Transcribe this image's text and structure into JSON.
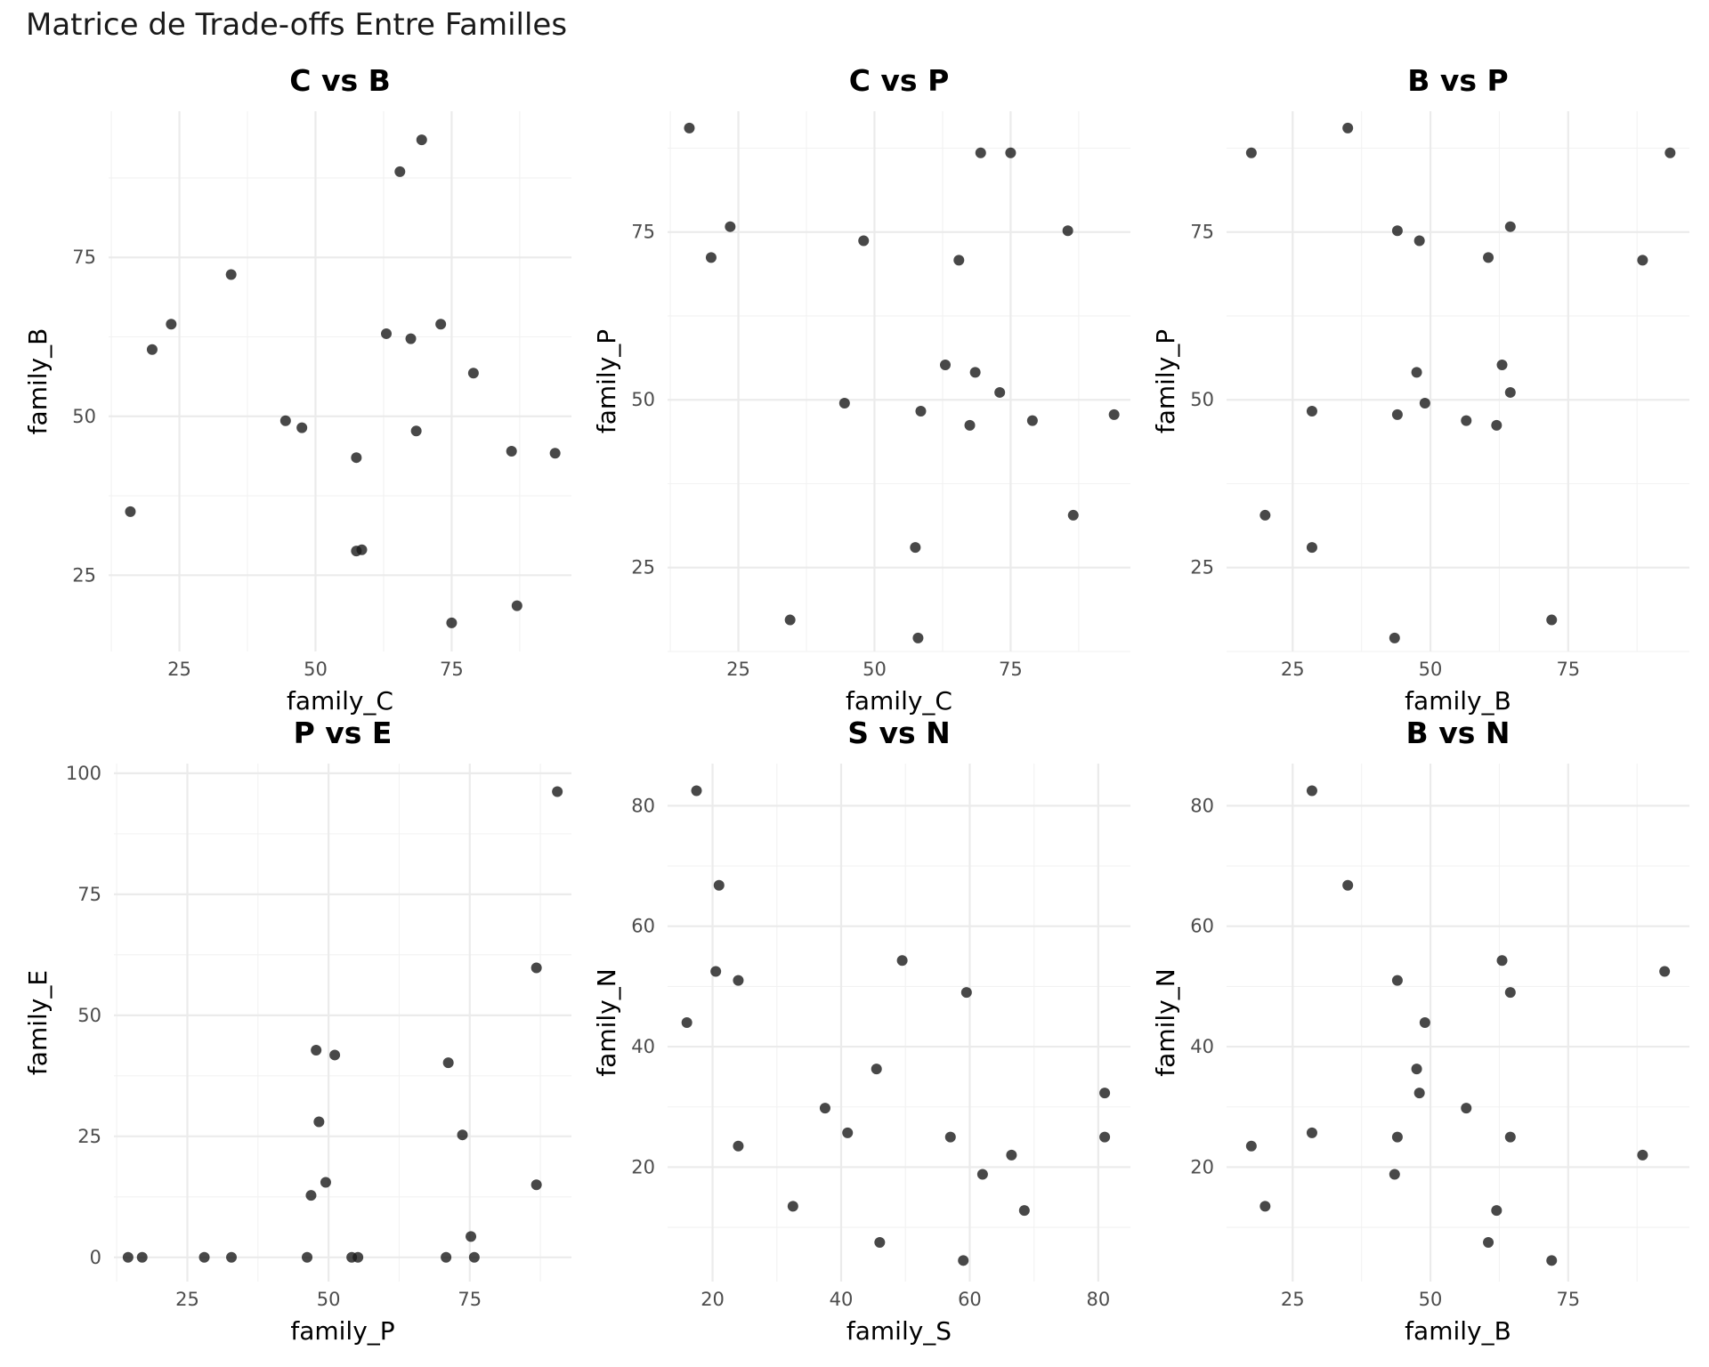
{
  "figure": {
    "title": "Matrice de Trade-offs Entre Familles"
  },
  "chart_data": [
    {
      "type": "scatter",
      "title": "C vs B",
      "xlabel": "family_C",
      "ylabel": "family_B",
      "xlim": [
        12,
        97
      ],
      "ylim": [
        13,
        98
      ],
      "x_ticks": [
        25,
        50,
        75
      ],
      "y_ticks": [
        25,
        50,
        75
      ],
      "grid": true,
      "points": [
        {
          "x": 16,
          "y": 35
        },
        {
          "x": 20,
          "y": 60.5
        },
        {
          "x": 23.5,
          "y": 64.5
        },
        {
          "x": 34.5,
          "y": 72.3
        },
        {
          "x": 44.5,
          "y": 49.3
        },
        {
          "x": 47.5,
          "y": 48.2
        },
        {
          "x": 57.5,
          "y": 43.5
        },
        {
          "x": 57.5,
          "y": 28.8
        },
        {
          "x": 58.5,
          "y": 29
        },
        {
          "x": 63,
          "y": 63
        },
        {
          "x": 65.5,
          "y": 88.5
        },
        {
          "x": 67.5,
          "y": 62.2
        },
        {
          "x": 68.5,
          "y": 47.7
        },
        {
          "x": 69.5,
          "y": 93.5
        },
        {
          "x": 73,
          "y": 64.5
        },
        {
          "x": 75,
          "y": 17.5
        },
        {
          "x": 79,
          "y": 56.8
        },
        {
          "x": 86,
          "y": 44.5
        },
        {
          "x": 87,
          "y": 20.2
        },
        {
          "x": 94,
          "y": 44.2
        }
      ]
    },
    {
      "type": "scatter",
      "title": "C vs P",
      "xlabel": "family_C",
      "ylabel": "family_P",
      "xlim": [
        12,
        97
      ],
      "ylim": [
        12.5,
        93
      ],
      "x_ticks": [
        25,
        50,
        75
      ],
      "y_ticks": [
        25,
        50,
        75
      ],
      "grid": true,
      "points": [
        {
          "x": 16,
          "y": 90.5
        },
        {
          "x": 20,
          "y": 71.2
        },
        {
          "x": 23.5,
          "y": 75.8
        },
        {
          "x": 34.5,
          "y": 17.2
        },
        {
          "x": 44.5,
          "y": 49.5
        },
        {
          "x": 48,
          "y": 73.7
        },
        {
          "x": 57.5,
          "y": 28
        },
        {
          "x": 58,
          "y": 14.5
        },
        {
          "x": 58.5,
          "y": 48.3
        },
        {
          "x": 63,
          "y": 55.2
        },
        {
          "x": 65.5,
          "y": 70.8
        },
        {
          "x": 67.5,
          "y": 46.2
        },
        {
          "x": 68.5,
          "y": 54.1
        },
        {
          "x": 69.5,
          "y": 86.8
        },
        {
          "x": 73,
          "y": 51.1
        },
        {
          "x": 75,
          "y": 86.8
        },
        {
          "x": 79,
          "y": 46.9
        },
        {
          "x": 85.5,
          "y": 75.2
        },
        {
          "x": 86.5,
          "y": 32.8
        },
        {
          "x": 94,
          "y": 47.8
        }
      ]
    },
    {
      "type": "scatter",
      "title": "B vs P",
      "xlabel": "family_B",
      "ylabel": "family_P",
      "xlim": [
        13,
        97
      ],
      "ylim": [
        12.5,
        93
      ],
      "x_ticks": [
        25,
        50,
        75
      ],
      "y_ticks": [
        25,
        50,
        75
      ],
      "grid": true,
      "points": [
        {
          "x": 17.5,
          "y": 86.8
        },
        {
          "x": 20,
          "y": 32.8
        },
        {
          "x": 28.5,
          "y": 48.3
        },
        {
          "x": 28.5,
          "y": 28
        },
        {
          "x": 35,
          "y": 90.5
        },
        {
          "x": 43.5,
          "y": 14.5
        },
        {
          "x": 44,
          "y": 75.2
        },
        {
          "x": 44,
          "y": 47.8
        },
        {
          "x": 47.5,
          "y": 54.1
        },
        {
          "x": 48,
          "y": 73.7
        },
        {
          "x": 49,
          "y": 49.5
        },
        {
          "x": 56.5,
          "y": 46.9
        },
        {
          "x": 60.5,
          "y": 71.2
        },
        {
          "x": 62,
          "y": 46.2
        },
        {
          "x": 63,
          "y": 55.2
        },
        {
          "x": 64.5,
          "y": 51.1
        },
        {
          "x": 64.5,
          "y": 75.8
        },
        {
          "x": 72,
          "y": 17.2
        },
        {
          "x": 88.5,
          "y": 70.8
        },
        {
          "x": 93.5,
          "y": 86.8
        }
      ]
    },
    {
      "type": "scatter",
      "title": "P vs E",
      "xlabel": "family_P",
      "ylabel": "family_E",
      "xlim": [
        12,
        93
      ],
      "ylim": [
        -5,
        102
      ],
      "x_ticks": [
        25,
        50,
        75
      ],
      "y_ticks": [
        0,
        25,
        50,
        75,
        100
      ],
      "grid": true,
      "points": [
        {
          "x": 14.5,
          "y": 0
        },
        {
          "x": 17,
          "y": 0
        },
        {
          "x": 28,
          "y": 0
        },
        {
          "x": 32.8,
          "y": 0
        },
        {
          "x": 46.2,
          "y": 0
        },
        {
          "x": 46.9,
          "y": 12.8
        },
        {
          "x": 47.8,
          "y": 42.8
        },
        {
          "x": 48.3,
          "y": 28
        },
        {
          "x": 49.5,
          "y": 15.5
        },
        {
          "x": 51.1,
          "y": 41.8
        },
        {
          "x": 54.1,
          "y": 0
        },
        {
          "x": 55.2,
          "y": 0
        },
        {
          "x": 70.8,
          "y": 0
        },
        {
          "x": 71.2,
          "y": 40.2
        },
        {
          "x": 73.7,
          "y": 25.3
        },
        {
          "x": 75.2,
          "y": 4.3
        },
        {
          "x": 75.8,
          "y": 0
        },
        {
          "x": 86.8,
          "y": 59.8
        },
        {
          "x": 86.8,
          "y": 15
        },
        {
          "x": 90.5,
          "y": 96.2
        }
      ]
    },
    {
      "type": "scatter",
      "title": "S vs N",
      "xlabel": "family_S",
      "ylabel": "family_N",
      "xlim": [
        13,
        85
      ],
      "ylim": [
        1,
        87
      ],
      "x_ticks": [
        20,
        40,
        60,
        80
      ],
      "y_ticks": [
        20,
        40,
        60,
        80
      ],
      "grid": true,
      "points": [
        {
          "x": 16,
          "y": 44
        },
        {
          "x": 17.5,
          "y": 82.5
        },
        {
          "x": 20.5,
          "y": 52.5
        },
        {
          "x": 21,
          "y": 66.8
        },
        {
          "x": 24,
          "y": 51
        },
        {
          "x": 24,
          "y": 23.5
        },
        {
          "x": 32.5,
          "y": 13.5
        },
        {
          "x": 37.5,
          "y": 29.8
        },
        {
          "x": 41,
          "y": 25.7
        },
        {
          "x": 45.5,
          "y": 36.3
        },
        {
          "x": 46,
          "y": 7.5
        },
        {
          "x": 49.5,
          "y": 54.3
        },
        {
          "x": 57,
          "y": 25
        },
        {
          "x": 59,
          "y": 4.5
        },
        {
          "x": 59.5,
          "y": 49
        },
        {
          "x": 62,
          "y": 18.8
        },
        {
          "x": 66.5,
          "y": 22
        },
        {
          "x": 68.5,
          "y": 12.8
        },
        {
          "x": 81,
          "y": 32.3
        },
        {
          "x": 81,
          "y": 25
        }
      ]
    },
    {
      "type": "scatter",
      "title": "B vs N",
      "xlabel": "family_B",
      "ylabel": "family_N",
      "xlim": [
        13,
        97
      ],
      "ylim": [
        1,
        87
      ],
      "x_ticks": [
        25,
        50,
        75
      ],
      "y_ticks": [
        20,
        40,
        60,
        80
      ],
      "grid": true,
      "points": [
        {
          "x": 17.5,
          "y": 23.5
        },
        {
          "x": 20,
          "y": 13.5
        },
        {
          "x": 28.5,
          "y": 82.5
        },
        {
          "x": 28.5,
          "y": 25.7
        },
        {
          "x": 35,
          "y": 66.8
        },
        {
          "x": 43.5,
          "y": 18.8
        },
        {
          "x": 44,
          "y": 51
        },
        {
          "x": 44,
          "y": 25
        },
        {
          "x": 47.5,
          "y": 36.3
        },
        {
          "x": 48,
          "y": 32.3
        },
        {
          "x": 49,
          "y": 44
        },
        {
          "x": 56.5,
          "y": 29.8
        },
        {
          "x": 60.5,
          "y": 7.5
        },
        {
          "x": 62,
          "y": 12.8
        },
        {
          "x": 63,
          "y": 54.3
        },
        {
          "x": 64.5,
          "y": 49
        },
        {
          "x": 64.5,
          "y": 25
        },
        {
          "x": 72,
          "y": 4.5
        },
        {
          "x": 88.5,
          "y": 22
        },
        {
          "x": 92.5,
          "y": 52.5
        }
      ]
    }
  ]
}
